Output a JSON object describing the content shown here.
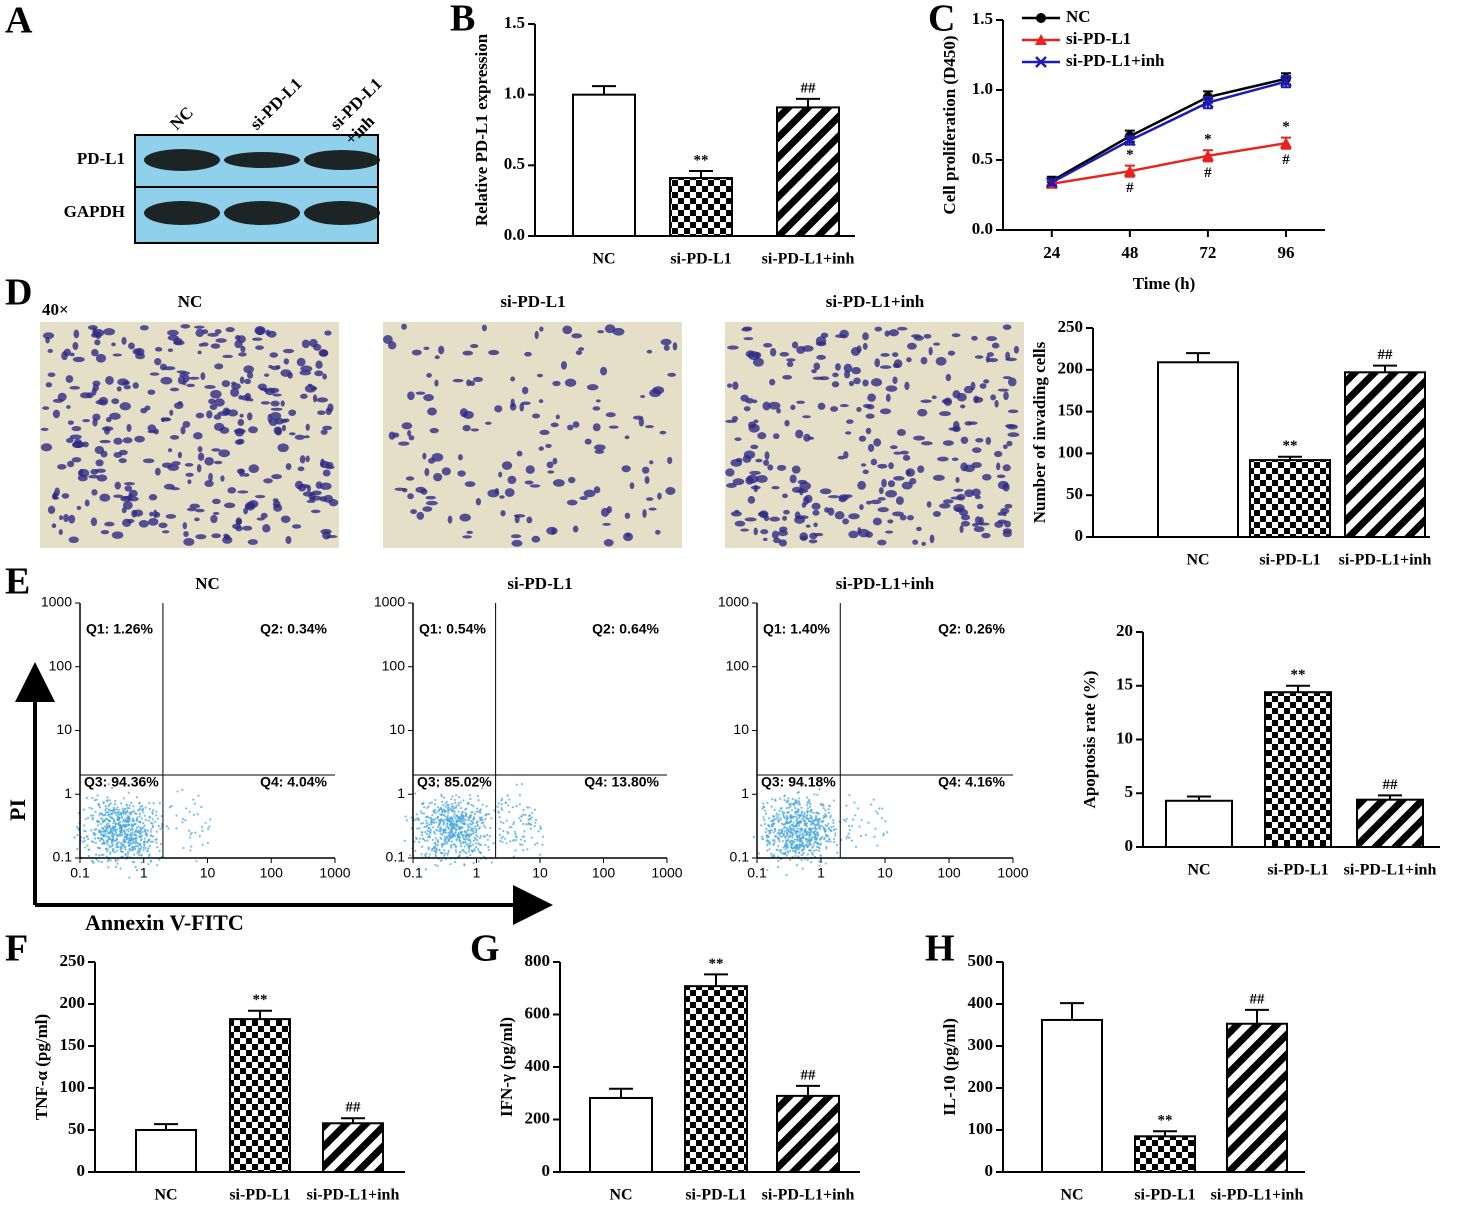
{
  "blot": {
    "panel_label": "A",
    "lanes": [
      [
        "NC"
      ],
      [
        "si-PD-L1"
      ],
      [
        "si-PD-L1",
        "+inh"
      ]
    ],
    "rows": [
      "PD-L1",
      "GAPDH"
    ]
  },
  "micrographs": {
    "panel_label": "D",
    "magnification": "40×",
    "titles": [
      "NC",
      "si-PD-L1",
      "si-PD-L1+inh"
    ]
  },
  "flow": {
    "panel_label": "E",
    "y_label": "PI",
    "x_label": "Annexin V-FITC",
    "log_scale": true,
    "plots": [
      {
        "title": "NC",
        "quadrants": [
          "Q1: 1.26%",
          "Q2: 0.34%",
          "Q3: 94.36%",
          "Q4: 4.04%"
        ],
        "xlim": [
          0.1,
          1000
        ],
        "ylim": [
          0.1,
          1000
        ],
        "xticks": [
          0.1,
          1,
          10,
          100,
          1000
        ],
        "yticks": [
          0.1,
          1,
          10,
          100,
          1000
        ],
        "gate": [
          2,
          2
        ]
      },
      {
        "title": "si-PD-L1",
        "quadrants": [
          "Q1: 0.54%",
          "Q2: 0.64%",
          "Q3: 85.02%",
          "Q4: 13.80%"
        ],
        "xlim": [
          0.1,
          1000
        ],
        "ylim": [
          0.1,
          1000
        ],
        "xticks": [
          0.1,
          1,
          10,
          100,
          1000
        ],
        "yticks": [
          0.1,
          1,
          10,
          100,
          1000
        ],
        "gate": [
          2,
          2
        ]
      },
      {
        "title": "si-PD-L1+inh",
        "quadrants": [
          "Q1: 1.40%",
          "Q2: 0.26%",
          "Q3: 94.18%",
          "Q4: 4.16%"
        ],
        "xlim": [
          0.1,
          1000
        ],
        "ylim": [
          0.1,
          1000
        ],
        "xticks": [
          0.1,
          1,
          10,
          100,
          1000
        ],
        "yticks": [
          0.1,
          1,
          10,
          100,
          1000
        ],
        "gate": [
          2,
          2
        ]
      }
    ]
  },
  "chart_data": [
    {
      "type": "bar",
      "panel_label": "B",
      "y_label": "Relative PD-L1 expression",
      "categories": [
        "NC",
        "si-PD-L1",
        "si-PD-L1+inh"
      ],
      "values": [
        1.0,
        0.41,
        0.91
      ],
      "errors": [
        0.06,
        0.05,
        0.06
      ],
      "bar_labels": [
        null,
        "**",
        "##"
      ],
      "fills": [
        "white",
        "checker",
        "hatch"
      ],
      "ylim": [
        0,
        1.5
      ],
      "yticks": [
        {
          "value": 0,
          "label": "0.0"
        },
        {
          "value": 0.5,
          "label": "0.5"
        },
        {
          "value": 1,
          "label": "1.0"
        },
        {
          "value": 1.5,
          "label": "1.5"
        }
      ]
    },
    {
      "type": "line",
      "panel_label": "C",
      "y_label": "Cell proliferation (D450)",
      "x_label": "Time (h)",
      "x": [
        24,
        48,
        72,
        96
      ],
      "xlim": [
        9,
        108
      ],
      "xticks": [
        24,
        48,
        72,
        96
      ],
      "ylim": [
        0,
        1.5
      ],
      "yticks": [
        {
          "value": 0,
          "label": "0.0"
        },
        {
          "value": 0.5,
          "label": "0.5"
        },
        {
          "value": 1,
          "label": "1.0"
        },
        {
          "value": 1.5,
          "label": "1.5"
        }
      ],
      "series": [
        {
          "name": "NC",
          "color": "#000000",
          "marker": "circle",
          "values": [
            0.35,
            0.67,
            0.95,
            1.08
          ],
          "errors": [
            0.03,
            0.04,
            0.04,
            0.04
          ]
        },
        {
          "name": "si-PD-L1",
          "color": "#e8221c",
          "marker": "triangle",
          "values": [
            0.33,
            0.42,
            0.53,
            0.62
          ],
          "errors": [
            0.02,
            0.04,
            0.04,
            0.04
          ],
          "labels_above": [
            null,
            "*",
            "*",
            "*"
          ],
          "labels_below": [
            null,
            "#",
            "#",
            "#"
          ]
        },
        {
          "name": "si-PD-L1+inh",
          "color": "#1c1cb4",
          "marker": "cross",
          "values": [
            0.34,
            0.64,
            0.91,
            1.06
          ],
          "errors": [
            0.02,
            0.03,
            0.04,
            0.04
          ]
        }
      ]
    },
    {
      "type": "bar",
      "y_label": "Number of invading cells",
      "categories": [
        "NC",
        "si-PD-L1",
        "si-PD-L1+inh"
      ],
      "values": [
        209,
        92,
        197
      ],
      "errors": [
        11,
        4,
        8
      ],
      "bar_labels": [
        null,
        "**",
        "##"
      ],
      "fills": [
        "white",
        "checker",
        "hatch"
      ],
      "ylim": [
        0,
        250
      ],
      "yticks": [
        0,
        50,
        100,
        150,
        200,
        250
      ]
    },
    {
      "type": "bar",
      "y_label": "Apoptosis rate (%)",
      "categories": [
        "NC",
        "si-PD-L1",
        "si-PD-L1+inh"
      ],
      "values": [
        4.3,
        14.4,
        4.4
      ],
      "errors": [
        0.4,
        0.6,
        0.4
      ],
      "bar_labels": [
        null,
        "**",
        "##"
      ],
      "fills": [
        "white",
        "checker",
        "hatch"
      ],
      "ylim": [
        0,
        20
      ],
      "yticks": [
        0,
        5,
        10,
        15,
        20
      ]
    },
    {
      "type": "bar",
      "panel_label": "F",
      "y_label": "TNF-α (pg/ml)",
      "categories": [
        "NC",
        "si-PD-L1",
        "si-PD-L1+inh"
      ],
      "values": [
        50,
        182,
        58
      ],
      "errors": [
        7,
        10,
        6
      ],
      "bar_labels": [
        null,
        "**",
        "##"
      ],
      "fills": [
        "white",
        "checker",
        "hatch"
      ],
      "ylim": [
        0,
        250
      ],
      "yticks": [
        0,
        50,
        100,
        150,
        200,
        250
      ]
    },
    {
      "type": "bar",
      "panel_label": "G",
      "y_label": "IFN-γ (pg/ml)",
      "categories": [
        "NC",
        "si-PD-L1",
        "si-PD-L1+inh"
      ],
      "values": [
        282,
        708,
        290
      ],
      "errors": [
        35,
        45,
        38
      ],
      "bar_labels": [
        null,
        "**",
        "##"
      ],
      "fills": [
        "white",
        "checker",
        "hatch"
      ],
      "ylim": [
        0,
        800
      ],
      "yticks": [
        0,
        200,
        400,
        600,
        800
      ]
    },
    {
      "type": "bar",
      "panel_label": "H",
      "y_label": "IL-10 (pg/ml)",
      "categories": [
        "NC",
        "si-PD-L1",
        "si-PD-L1+inh"
      ],
      "values": [
        362,
        85,
        353
      ],
      "errors": [
        40,
        12,
        33
      ],
      "bar_labels": [
        null,
        "**",
        "##"
      ],
      "fills": [
        "white",
        "checker",
        "hatch"
      ],
      "ylim": [
        0,
        500
      ],
      "yticks": [
        0,
        100,
        200,
        300,
        400,
        500
      ]
    }
  ]
}
